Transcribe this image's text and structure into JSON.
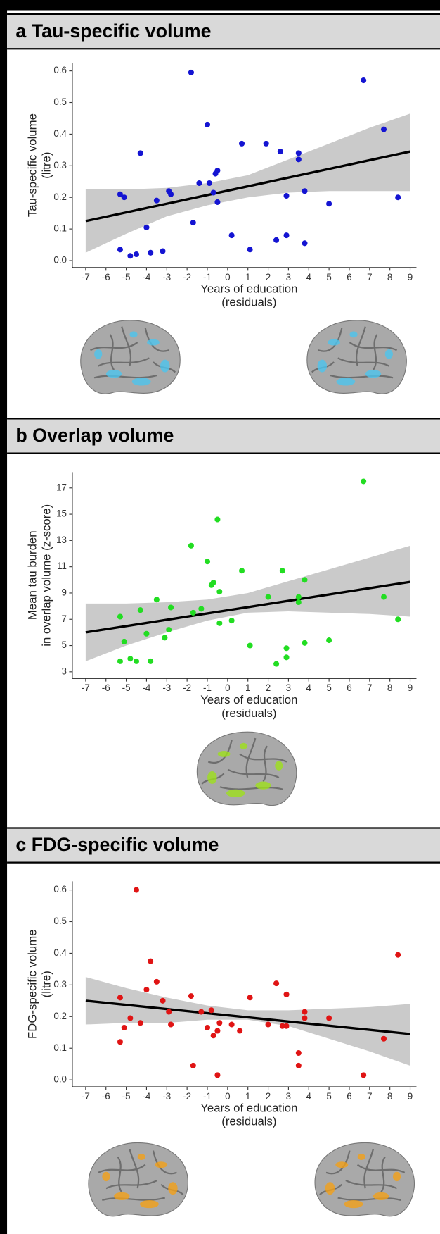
{
  "chart_data": [
    {
      "type": "scatter",
      "title": "a Tau-specific volume",
      "x_label": [
        "Years of education",
        "(residuals)"
      ],
      "y_label": [
        "Tau-specific volume",
        "(litre)"
      ],
      "color": "#1414d2",
      "x": [
        -5.3,
        -5.1,
        -5.3,
        -4.8,
        -4.5,
        -4.3,
        -4.0,
        -3.8,
        -3.5,
        -3.2,
        -2.9,
        -2.8,
        -1.8,
        -1.7,
        -1.4,
        -1.0,
        -0.9,
        -0.7,
        -0.6,
        -0.5,
        -0.5,
        0.2,
        0.7,
        1.1,
        1.9,
        2.4,
        2.6,
        2.9,
        2.9,
        3.5,
        3.5,
        3.8,
        3.8,
        5.0,
        6.7,
        7.7,
        8.4
      ],
      "y": [
        0.21,
        0.2,
        0.035,
        0.015,
        0.02,
        0.34,
        0.105,
        0.025,
        0.19,
        0.03,
        0.22,
        0.21,
        0.595,
        0.12,
        0.245,
        0.43,
        0.245,
        0.215,
        0.275,
        0.285,
        0.185,
        0.08,
        0.37,
        0.035,
        0.37,
        0.065,
        0.345,
        0.205,
        0.08,
        0.34,
        0.32,
        0.22,
        0.055,
        0.18,
        0.57,
        0.415,
        0.2
      ],
      "fit": {
        "x": [
          -7,
          9
        ],
        "y": [
          0.125,
          0.345
        ]
      },
      "band": {
        "x": [
          -7,
          -5,
          -3,
          -1,
          1,
          3,
          5,
          7,
          9
        ],
        "upper": [
          0.225,
          0.225,
          0.23,
          0.245,
          0.27,
          0.32,
          0.37,
          0.42,
          0.465
        ],
        "lower": [
          0.025,
          0.085,
          0.14,
          0.175,
          0.2,
          0.215,
          0.22,
          0.22,
          0.22
        ]
      },
      "xlim": [
        -7.66,
        9.31
      ],
      "ylim": [
        -0.022,
        0.625
      ],
      "xticks": [
        -7,
        -6,
        -5,
        -4,
        -3,
        -2,
        -1,
        0,
        1,
        2,
        3,
        4,
        5,
        6,
        7,
        8,
        9
      ],
      "yticks": [
        {
          "value": 0,
          "label": "0.0"
        },
        0.1,
        0.2,
        0.3,
        0.4,
        0.5,
        0.6
      ]
    },
    {
      "type": "scatter",
      "title": "b Overlap volume",
      "x_label": [
        "Years of education",
        "(residuals)"
      ],
      "y_label": [
        "Mean tau burden",
        "in overlap volume (z-score)"
      ],
      "color": "#22dd22",
      "x": [
        -5.3,
        -5.3,
        -5.1,
        -4.8,
        -4.5,
        -4.3,
        -4.0,
        -3.8,
        -3.5,
        -3.1,
        -2.9,
        -2.8,
        -1.8,
        -1.7,
        -1.3,
        -1.0,
        -0.8,
        -0.7,
        -0.5,
        -0.4,
        -0.4,
        0.2,
        0.7,
        1.1,
        2.0,
        2.4,
        2.7,
        2.9,
        2.9,
        3.5,
        3.5,
        3.8,
        3.8,
        5.0,
        6.7,
        7.7,
        8.4
      ],
      "y": [
        7.2,
        3.8,
        5.3,
        4.0,
        3.8,
        7.7,
        5.9,
        3.8,
        8.5,
        5.6,
        6.2,
        7.9,
        12.6,
        7.5,
        7.8,
        11.4,
        9.6,
        9.8,
        14.6,
        9.1,
        6.7,
        6.9,
        10.7,
        5.0,
        8.7,
        3.6,
        10.7,
        4.8,
        4.1,
        8.7,
        8.3,
        10.0,
        5.2,
        5.4,
        17.5,
        8.7,
        7.0
      ],
      "fit": {
        "x": [
          -7,
          9
        ],
        "y": [
          6.0,
          9.85
        ]
      },
      "band": {
        "x": [
          -7,
          -5,
          -3,
          -1,
          1,
          3,
          5,
          7,
          9
        ],
        "upper": [
          8.2,
          8.2,
          8.3,
          8.5,
          9.0,
          9.9,
          10.8,
          11.7,
          12.6
        ],
        "lower": [
          3.8,
          5.0,
          6.0,
          6.9,
          7.5,
          7.6,
          7.5,
          7.4,
          7.2
        ]
      },
      "xlim": [
        -7.66,
        9.31
      ],
      "ylim": [
        2.5,
        18.2
      ],
      "xticks": [
        -7,
        -6,
        -5,
        -4,
        -3,
        -2,
        -1,
        0,
        1,
        2,
        3,
        4,
        5,
        6,
        7,
        8,
        9
      ],
      "yticks": [
        3,
        5,
        7,
        9,
        11,
        13,
        15,
        17
      ]
    },
    {
      "type": "scatter",
      "title": "c FDG-specific volume",
      "x_label": [
        "Years of education",
        "(residuals)"
      ],
      "y_label": [
        "FDG-specific volume",
        "(litre)"
      ],
      "color": "#e01414",
      "x": [
        -5.3,
        -5.3,
        -5.1,
        -4.8,
        -4.5,
        -4.3,
        -4.0,
        -3.8,
        -3.5,
        -3.2,
        -2.9,
        -2.8,
        -1.8,
        -1.7,
        -1.3,
        -1.0,
        -0.8,
        -0.7,
        -0.5,
        -0.5,
        -0.4,
        0.2,
        0.6,
        1.1,
        2.0,
        2.4,
        2.7,
        2.9,
        2.9,
        3.5,
        3.5,
        3.8,
        3.8,
        5.0,
        6.7,
        7.7,
        8.4
      ],
      "y": [
        0.26,
        0.12,
        0.165,
        0.195,
        0.6,
        0.18,
        0.285,
        0.375,
        0.31,
        0.25,
        0.215,
        0.175,
        0.265,
        0.045,
        0.215,
        0.165,
        0.22,
        0.14,
        0.015,
        0.155,
        0.18,
        0.175,
        0.155,
        0.26,
        0.175,
        0.305,
        0.17,
        0.27,
        0.17,
        0.085,
        0.045,
        0.215,
        0.195,
        0.195,
        0.015,
        0.13,
        0.395
      ],
      "fit": {
        "x": [
          -7,
          9
        ],
        "y": [
          0.25,
          0.145
        ]
      },
      "band": {
        "x": [
          -7,
          -5,
          -3,
          -1,
          1,
          3,
          5,
          7,
          9
        ],
        "upper": [
          0.325,
          0.29,
          0.26,
          0.235,
          0.22,
          0.22,
          0.225,
          0.23,
          0.24
        ],
        "lower": [
          0.175,
          0.18,
          0.18,
          0.19,
          0.19,
          0.17,
          0.13,
          0.09,
          0.045
        ]
      },
      "xlim": [
        -7.66,
        9.31
      ],
      "ylim": [
        -0.022,
        0.627
      ],
      "xticks": [
        -7,
        -6,
        -5,
        -4,
        -3,
        -2,
        -1,
        0,
        1,
        2,
        3,
        4,
        5,
        6,
        7,
        8,
        9
      ],
      "yticks": [
        {
          "value": 0,
          "label": "0.0"
        },
        0.1,
        0.2,
        0.3,
        0.4,
        0.5,
        0.6
      ]
    }
  ]
}
